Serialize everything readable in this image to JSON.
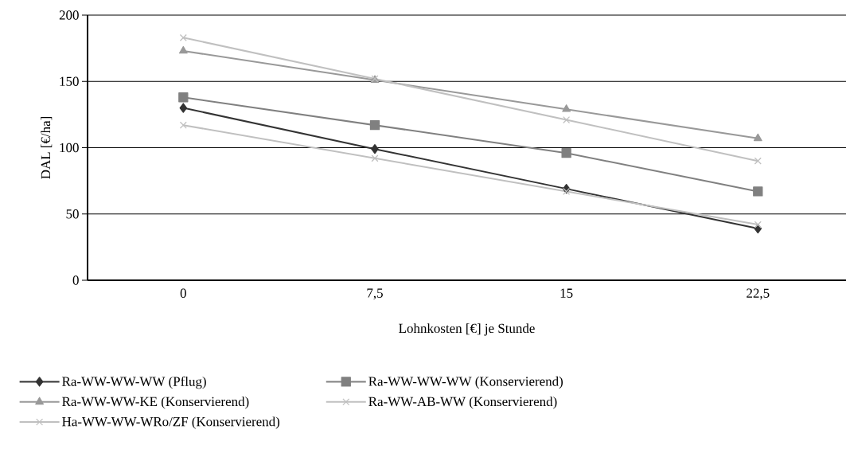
{
  "chart_data": {
    "type": "line",
    "xlabel": "Lohnkosten [€] je Stunde",
    "ylabel": "DAL [€/ha]",
    "categories": [
      "0",
      "7,5",
      "15",
      "22,5"
    ],
    "series": [
      {
        "name": "Ra-WW-WW-WW (Pflug)",
        "color": "#333333",
        "marker": "diamond",
        "values": [
          130,
          99,
          69,
          39
        ]
      },
      {
        "name": "Ra-WW-WW-WW (Konservierend)",
        "color": "#808080",
        "marker": "square",
        "values": [
          138,
          117,
          96,
          67
        ]
      },
      {
        "name": "Ra-WW-WW-KE (Konservierend)",
        "color": "#999999",
        "marker": "triangle",
        "values": [
          173,
          151,
          129,
          107
        ]
      },
      {
        "name": "Ra-WW-AB-WW (Konservierend)",
        "color": "#c0c0c0",
        "marker": "cross",
        "values": [
          183,
          152,
          121,
          90
        ]
      },
      {
        "name": "Ha-WW-WW-WRo/ZF (Konservierend)",
        "color": "#c0c0c0",
        "marker": "cross",
        "values": [
          117,
          92,
          67,
          42
        ]
      }
    ],
    "ylim": [
      0,
      200
    ],
    "yticks": [
      0,
      50,
      100,
      150,
      200
    ],
    "grid": "y",
    "legend": "bottom",
    "line_style": "solid"
  }
}
